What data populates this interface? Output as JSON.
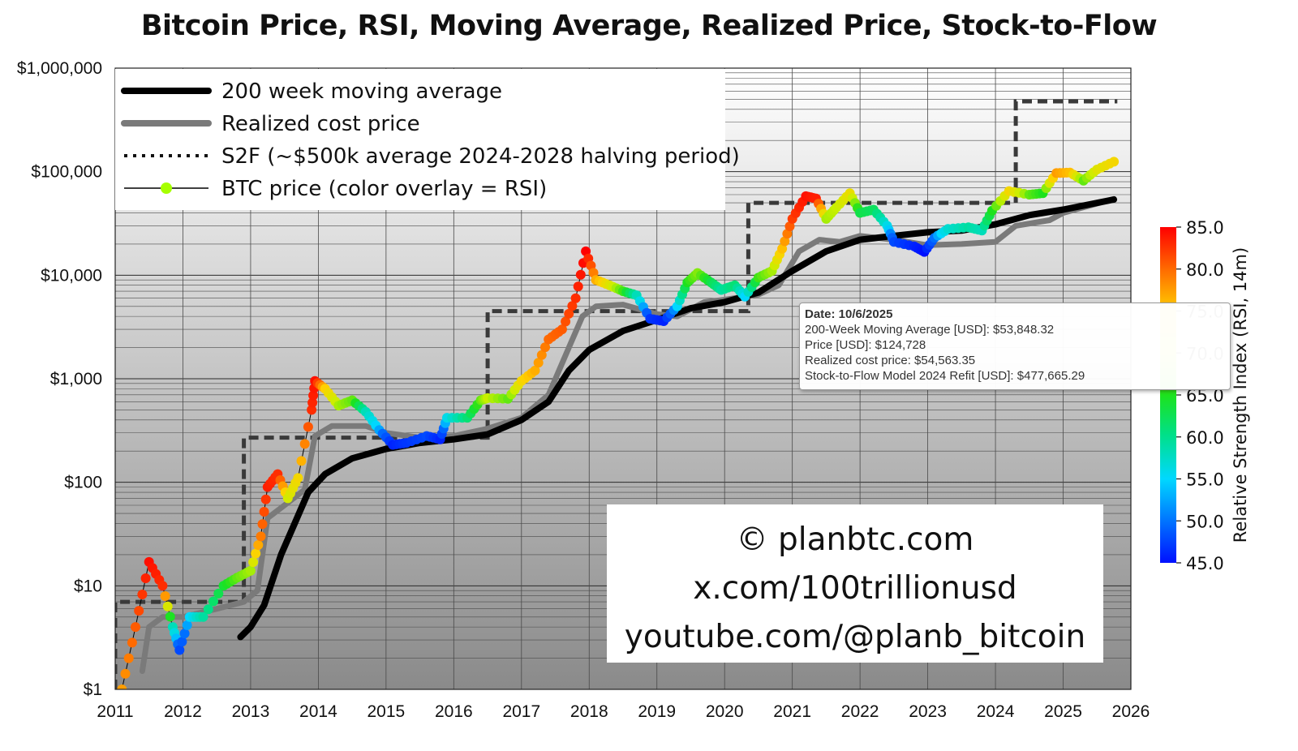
{
  "title": "Bitcoin Price, RSI, Moving Average, Realized Price, Stock-to-Flow",
  "legend": [
    {
      "label": "200 week moving average",
      "style": "thick-black"
    },
    {
      "label": "Realized cost price",
      "style": "thick-gray"
    },
    {
      "label": "S2F (~$500k average 2024-2028 halving period)",
      "style": "dotted"
    },
    {
      "label": "BTC price (color overlay = RSI)",
      "style": "line-dot"
    }
  ],
  "tooltip": {
    "date": "Date: 10/6/2025",
    "ma": "200-Week Moving Average [USD]: $53,848.32",
    "price": "Price [USD]: $124,728",
    "realized": "Realized cost price: $54,563.35",
    "s2f": "Stock-to-Flow Model 2024 Refit [USD]: $477,665.29"
  },
  "credit": {
    "line1": "© planbtc.com",
    "line2": "x.com/100trillionusd",
    "line3": "youtube.com/@planb_bitcoin"
  },
  "colorbar": {
    "label": "Relative Strength Index (RSI, 14m)",
    "min": 45,
    "max": 85,
    "ticks": [
      "85.0",
      "80.0",
      "75.0",
      "70.0",
      "65.0",
      "60.0",
      "55.0",
      "50.0",
      "45.0"
    ]
  },
  "colors": {
    "ma": "#000000",
    "realized": "#7a7a7a",
    "s2f": "#3a3a3a"
  },
  "chart_data": {
    "type": "line",
    "title": "Bitcoin Price, RSI, Moving Average, Realized Price, Stock-to-Flow",
    "yscale": "log",
    "ylim": [
      1,
      1000000
    ],
    "xlim": [
      2011,
      2026
    ],
    "y_ticks": [
      {
        "value": 1,
        "label": "$1"
      },
      {
        "value": 10,
        "label": "$10"
      },
      {
        "value": 100,
        "label": "$100"
      },
      {
        "value": 1000,
        "label": "$1,000"
      },
      {
        "value": 10000,
        "label": "$10,000"
      },
      {
        "value": 100000,
        "label": "$100,000"
      },
      {
        "value": 1000000,
        "label": "$1,000,000"
      }
    ],
    "x_ticks": [
      "2011",
      "2012",
      "2013",
      "2014",
      "2015",
      "2016",
      "2017",
      "2018",
      "2019",
      "2020",
      "2021",
      "2022",
      "2023",
      "2024",
      "2025",
      "2026"
    ],
    "series": [
      {
        "name": "200 week moving average",
        "points": [
          [
            2012.85,
            3.2
          ],
          [
            2013.0,
            4.0
          ],
          [
            2013.2,
            6.5
          ],
          [
            2013.45,
            20
          ],
          [
            2013.65,
            40
          ],
          [
            2013.85,
            80
          ],
          [
            2014.1,
            120
          ],
          [
            2014.5,
            170
          ],
          [
            2015.0,
            210
          ],
          [
            2015.5,
            240
          ],
          [
            2016.0,
            260
          ],
          [
            2016.5,
            290
          ],
          [
            2017.0,
            400
          ],
          [
            2017.4,
            600
          ],
          [
            2017.7,
            1200
          ],
          [
            2018.0,
            1900
          ],
          [
            2018.5,
            2900
          ],
          [
            2019.0,
            3700
          ],
          [
            2019.5,
            4800
          ],
          [
            2020.0,
            5500
          ],
          [
            2020.5,
            6800
          ],
          [
            2021.0,
            11000
          ],
          [
            2021.5,
            17000
          ],
          [
            2022.0,
            22000
          ],
          [
            2022.5,
            24000
          ],
          [
            2023.0,
            26000
          ],
          [
            2023.5,
            27000
          ],
          [
            2024.0,
            31000
          ],
          [
            2024.5,
            38000
          ],
          [
            2025.0,
            43000
          ],
          [
            2025.75,
            53848
          ]
        ]
      },
      {
        "name": "Realized cost price",
        "points": [
          [
            2011.4,
            1.5
          ],
          [
            2011.5,
            4.0
          ],
          [
            2011.7,
            5.0
          ],
          [
            2012.0,
            5.0
          ],
          [
            2012.5,
            6.0
          ],
          [
            2012.9,
            7.0
          ],
          [
            2013.1,
            9.0
          ],
          [
            2013.25,
            45
          ],
          [
            2013.5,
            60
          ],
          [
            2013.8,
            85
          ],
          [
            2013.95,
            280
          ],
          [
            2014.2,
            350
          ],
          [
            2014.7,
            350
          ],
          [
            2015.0,
            300
          ],
          [
            2015.5,
            270
          ],
          [
            2016.0,
            280
          ],
          [
            2016.5,
            330
          ],
          [
            2017.0,
            420
          ],
          [
            2017.4,
            700
          ],
          [
            2017.7,
            2000
          ],
          [
            2017.9,
            4000
          ],
          [
            2018.1,
            5000
          ],
          [
            2018.5,
            5200
          ],
          [
            2019.0,
            4200
          ],
          [
            2019.3,
            4000
          ],
          [
            2019.7,
            5500
          ],
          [
            2020.0,
            5800
          ],
          [
            2020.5,
            6500
          ],
          [
            2020.8,
            8000
          ],
          [
            2021.1,
            17000
          ],
          [
            2021.4,
            22000
          ],
          [
            2021.7,
            21000
          ],
          [
            2022.0,
            24000
          ],
          [
            2022.5,
            22000
          ],
          [
            2023.0,
            19500
          ],
          [
            2023.5,
            20000
          ],
          [
            2024.0,
            21000
          ],
          [
            2024.3,
            30000
          ],
          [
            2024.8,
            34000
          ],
          [
            2025.0,
            40000
          ],
          [
            2025.75,
            54563
          ]
        ]
      },
      {
        "name": "S2F (~$500k average 2024-2028 halving period)",
        "segments": [
          {
            "from": 2011.0,
            "to": 2012.9,
            "value": 7
          },
          {
            "from": 2012.9,
            "to": 2016.5,
            "value": 270
          },
          {
            "from": 2016.5,
            "to": 2020.35,
            "value": 4500
          },
          {
            "from": 2020.35,
            "to": 2024.3,
            "value": 50000
          },
          {
            "from": 2024.3,
            "to": 2025.8,
            "value": 477665
          }
        ]
      },
      {
        "name": "BTC price (color overlay = RSI)",
        "points": [
          [
            2011.1,
            1.0,
            75
          ],
          [
            2011.3,
            4.0,
            79
          ],
          [
            2011.5,
            17,
            84
          ],
          [
            2011.7,
            10,
            82
          ],
          [
            2011.85,
            4,
            55
          ],
          [
            2011.95,
            2.4,
            48
          ],
          [
            2012.1,
            5,
            52
          ],
          [
            2012.3,
            5,
            56
          ],
          [
            2012.6,
            10,
            61
          ],
          [
            2012.8,
            12,
            64
          ],
          [
            2013.0,
            14,
            66
          ],
          [
            2013.15,
            30,
            77
          ],
          [
            2013.25,
            90,
            83
          ],
          [
            2013.4,
            120,
            82
          ],
          [
            2013.55,
            70,
            68
          ],
          [
            2013.7,
            110,
            71
          ],
          [
            2013.9,
            500,
            82
          ],
          [
            2013.95,
            950,
            84
          ],
          [
            2014.1,
            800,
            72
          ],
          [
            2014.3,
            550,
            66
          ],
          [
            2014.5,
            620,
            64
          ],
          [
            2014.7,
            480,
            55
          ],
          [
            2014.9,
            320,
            51
          ],
          [
            2015.1,
            230,
            46
          ],
          [
            2015.3,
            240,
            47
          ],
          [
            2015.6,
            280,
            48
          ],
          [
            2015.8,
            260,
            46
          ],
          [
            2015.9,
            420,
            53
          ],
          [
            2016.2,
            420,
            58
          ],
          [
            2016.4,
            620,
            64
          ],
          [
            2016.5,
            650,
            67
          ],
          [
            2016.8,
            640,
            64
          ],
          [
            2017.0,
            950,
            71
          ],
          [
            2017.2,
            1200,
            74
          ],
          [
            2017.4,
            2400,
            78
          ],
          [
            2017.6,
            3000,
            79
          ],
          [
            2017.8,
            6000,
            82
          ],
          [
            2017.95,
            17000,
            85
          ],
          [
            2018.1,
            9000,
            74
          ],
          [
            2018.3,
            8000,
            69
          ],
          [
            2018.5,
            7000,
            63
          ],
          [
            2018.7,
            6400,
            55
          ],
          [
            2018.9,
            3800,
            47
          ],
          [
            2019.1,
            3600,
            46
          ],
          [
            2019.3,
            5000,
            52
          ],
          [
            2019.45,
            8500,
            62
          ],
          [
            2019.6,
            10500,
            65
          ],
          [
            2019.8,
            8500,
            60
          ],
          [
            2019.95,
            7200,
            56
          ],
          [
            2020.15,
            8000,
            58
          ],
          [
            2020.3,
            6200,
            52
          ],
          [
            2020.5,
            9500,
            63
          ],
          [
            2020.7,
            11000,
            66
          ],
          [
            2020.85,
            18000,
            73
          ],
          [
            2021.0,
            35000,
            81
          ],
          [
            2021.2,
            58000,
            84
          ],
          [
            2021.35,
            55000,
            83
          ],
          [
            2021.5,
            35000,
            66
          ],
          [
            2021.65,
            45000,
            67
          ],
          [
            2021.85,
            62000,
            70
          ],
          [
            2022.0,
            40000,
            60
          ],
          [
            2022.2,
            43000,
            59
          ],
          [
            2022.4,
            30000,
            53
          ],
          [
            2022.5,
            21000,
            48
          ],
          [
            2022.8,
            19000,
            46
          ],
          [
            2022.95,
            16800,
            45
          ],
          [
            2023.1,
            23000,
            50
          ],
          [
            2023.3,
            28000,
            54
          ],
          [
            2023.6,
            29000,
            56
          ],
          [
            2023.8,
            27000,
            55
          ],
          [
            2023.95,
            42000,
            62
          ],
          [
            2024.2,
            65000,
            71
          ],
          [
            2024.5,
            60000,
            64
          ],
          [
            2024.7,
            62000,
            62
          ],
          [
            2024.9,
            97000,
            75
          ],
          [
            2025.1,
            98000,
            73
          ],
          [
            2025.3,
            82000,
            64
          ],
          [
            2025.5,
            105000,
            69
          ],
          [
            2025.75,
            124728,
            71
          ]
        ]
      }
    ]
  }
}
